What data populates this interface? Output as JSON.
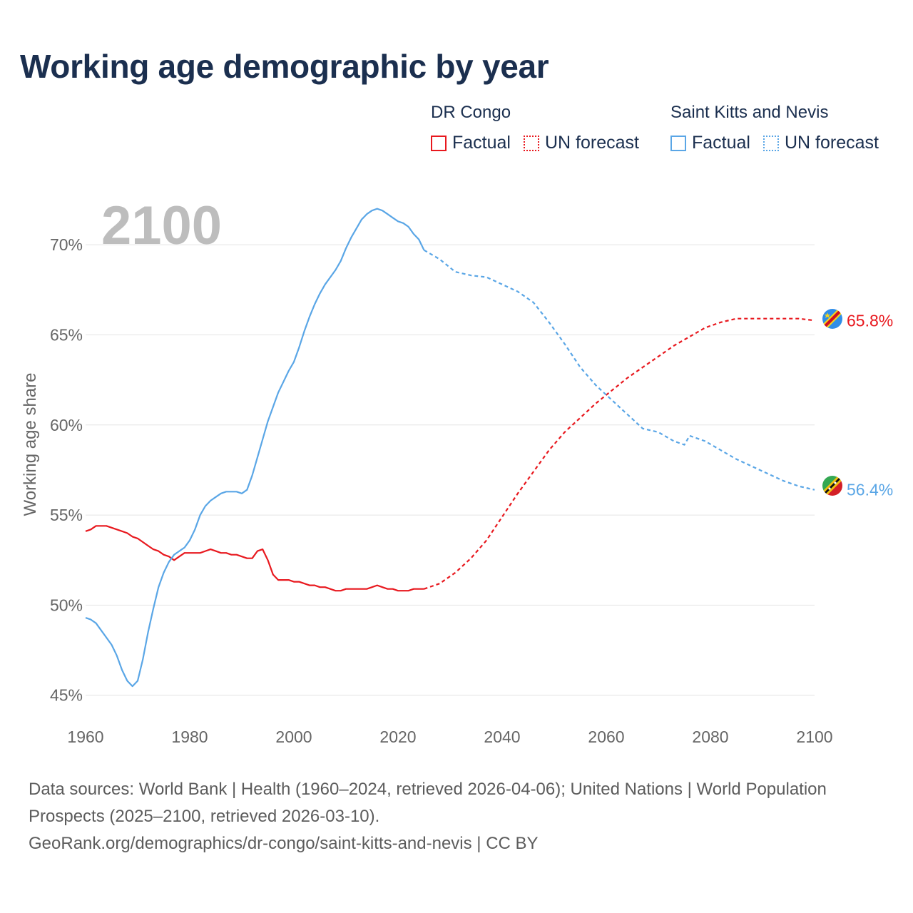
{
  "title": "Working age demographic by year",
  "legend": [
    {
      "country": "DR Congo",
      "factual_label": "Factual",
      "forecast_label": "UN forecast",
      "color": "#e8181e"
    },
    {
      "country": "Saint Kitts and Nevis",
      "factual_label": "Factual",
      "forecast_label": "UN forecast",
      "color": "#5aa6e6"
    }
  ],
  "footer": {
    "sources": "Data sources: World Bank | Health (1960–2024, retrieved 2026-04-06); United Nations | World Population Prospects (2025–2100, retrieved 2026-03-10).",
    "link": "GeoRank.org/demographics/dr-congo/saint-kitts-and-nevis | CC BY"
  },
  "chart_data": {
    "type": "line",
    "title": "Working age demographic by year",
    "year_label": "2100",
    "xlabel": "",
    "ylabel": "Working age share",
    "xlim": [
      1960,
      2100
    ],
    "ylim": [
      44,
      72.5
    ],
    "x_ticks": [
      1960,
      1980,
      2000,
      2020,
      2040,
      2060,
      2080,
      2100
    ],
    "x_tick_labels": [
      "1960",
      "1980",
      "2000",
      "2020",
      "2040",
      "2060",
      "2080",
      "2100"
    ],
    "y_ticks": [
      45,
      50,
      55,
      60,
      65,
      70
    ],
    "y_tick_labels": [
      "45%",
      "50%",
      "55%",
      "60%",
      "65%",
      "70%"
    ],
    "grid": true,
    "series": [
      {
        "name": "DR Congo",
        "color": "#e8181e",
        "flag_icon": "dr-congo-flag-icon",
        "end_label": "65.8%",
        "factual": {
          "x": [
            1960,
            1961,
            1962,
            1963,
            1964,
            1965,
            1966,
            1967,
            1968,
            1969,
            1970,
            1971,
            1972,
            1973,
            1974,
            1975,
            1976,
            1977,
            1978,
            1979,
            1980,
            1981,
            1982,
            1983,
            1984,
            1985,
            1986,
            1987,
            1988,
            1989,
            1990,
            1991,
            1992,
            1993,
            1994,
            1995,
            1996,
            1997,
            1998,
            1999,
            2000,
            2001,
            2002,
            2003,
            2004,
            2005,
            2006,
            2007,
            2008,
            2009,
            2010,
            2011,
            2012,
            2013,
            2014,
            2015,
            2016,
            2017,
            2018,
            2019,
            2020,
            2021,
            2022,
            2023,
            2024,
            2025
          ],
          "y": [
            54.1,
            54.2,
            54.4,
            54.4,
            54.4,
            54.3,
            54.2,
            54.1,
            54.0,
            53.8,
            53.7,
            53.5,
            53.3,
            53.1,
            53.0,
            52.8,
            52.7,
            52.5,
            52.7,
            52.9,
            52.9,
            52.9,
            52.9,
            53.0,
            53.1,
            53.0,
            52.9,
            52.9,
            52.8,
            52.8,
            52.7,
            52.6,
            52.6,
            53.0,
            53.1,
            52.5,
            51.7,
            51.4,
            51.4,
            51.4,
            51.3,
            51.3,
            51.2,
            51.1,
            51.1,
            51.0,
            51.0,
            50.9,
            50.8,
            50.8,
            50.9,
            50.9,
            50.9,
            50.9,
            50.9,
            51.0,
            51.1,
            51.0,
            50.9,
            50.9,
            50.8,
            50.8,
            50.8,
            50.9,
            50.9,
            50.9
          ]
        },
        "forecast": {
          "x": [
            2025,
            2028,
            2031,
            2034,
            2037,
            2040,
            2043,
            2046,
            2049,
            2052,
            2055,
            2058,
            2061,
            2064,
            2067,
            2070,
            2073,
            2076,
            2079,
            2082,
            2085,
            2088,
            2091,
            2094,
            2097,
            2100
          ],
          "y": [
            50.9,
            51.2,
            51.8,
            52.6,
            53.6,
            54.9,
            56.2,
            57.4,
            58.6,
            59.6,
            60.4,
            61.2,
            61.9,
            62.6,
            63.2,
            63.8,
            64.4,
            64.9,
            65.4,
            65.7,
            65.9,
            65.9,
            65.9,
            65.9,
            65.9,
            65.8
          ]
        }
      },
      {
        "name": "Saint Kitts and Nevis",
        "color": "#5aa6e6",
        "flag_icon": "saint-kitts-and-nevis-flag-icon",
        "end_label": "56.4%",
        "factual": {
          "x": [
            1960,
            1961,
            1962,
            1963,
            1964,
            1965,
            1966,
            1967,
            1968,
            1969,
            1970,
            1971,
            1972,
            1973,
            1974,
            1975,
            1976,
            1977,
            1978,
            1979,
            1980,
            1981,
            1982,
            1983,
            1984,
            1985,
            1986,
            1987,
            1988,
            1989,
            1990,
            1991,
            1992,
            1993,
            1994,
            1995,
            1996,
            1997,
            1998,
            1999,
            2000,
            2001,
            2002,
            2003,
            2004,
            2005,
            2006,
            2007,
            2008,
            2009,
            2010,
            2011,
            2012,
            2013,
            2014,
            2015,
            2016,
            2017,
            2018,
            2019,
            2020,
            2021,
            2022,
            2023,
            2024,
            2025
          ],
          "y": [
            49.3,
            49.2,
            49.0,
            48.6,
            48.2,
            47.8,
            47.2,
            46.4,
            45.8,
            45.5,
            45.8,
            47.0,
            48.5,
            49.8,
            51.0,
            51.8,
            52.4,
            52.8,
            53.0,
            53.2,
            53.6,
            54.2,
            55.0,
            55.5,
            55.8,
            56.0,
            56.2,
            56.3,
            56.3,
            56.3,
            56.2,
            56.4,
            57.2,
            58.2,
            59.2,
            60.2,
            61.0,
            61.8,
            62.4,
            63.0,
            63.5,
            64.3,
            65.2,
            66.0,
            66.7,
            67.3,
            67.8,
            68.2,
            68.6,
            69.1,
            69.8,
            70.4,
            70.9,
            71.4,
            71.7,
            71.9,
            72.0,
            71.9,
            71.7,
            71.5,
            71.3,
            71.2,
            71.0,
            70.6,
            70.3,
            69.7
          ]
        },
        "forecast": {
          "x": [
            2025,
            2028,
            2031,
            2034,
            2037,
            2040,
            2043,
            2046,
            2049,
            2052,
            2055,
            2058,
            2061,
            2064,
            2067,
            2070,
            2073,
            2075,
            2076,
            2079,
            2082,
            2085,
            2088,
            2091,
            2094,
            2097,
            2100
          ],
          "y": [
            69.7,
            69.2,
            68.5,
            68.3,
            68.2,
            67.8,
            67.4,
            66.8,
            65.7,
            64.5,
            63.2,
            62.2,
            61.4,
            60.6,
            59.8,
            59.6,
            59.1,
            58.9,
            59.4,
            59.1,
            58.6,
            58.1,
            57.7,
            57.3,
            56.9,
            56.6,
            56.4
          ]
        }
      }
    ]
  }
}
